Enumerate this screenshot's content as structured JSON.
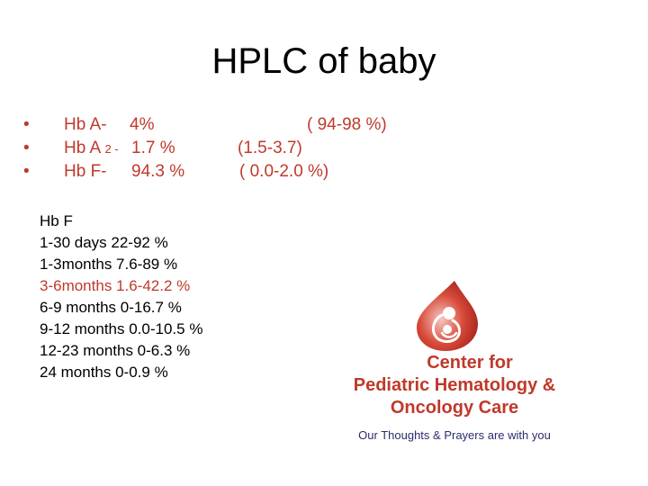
{
  "title": "HPLC of baby",
  "bullets": [
    {
      "label": "Hb A-",
      "sub": "",
      "value": "4%",
      "range": "( 94-98 %)"
    },
    {
      "label": "Hb A",
      "sub": "2 -",
      "value": "1.7 %",
      "range": "(1.5-3.7)"
    },
    {
      "label": "Hb F-",
      "sub": "",
      "value": "94.3 %",
      "range": "( 0.0-2.0 %)"
    }
  ],
  "bullet_symbol": "•",
  "ranges": {
    "heading": "Hb F",
    "lines": [
      "1-30 days 22-92 %",
      "1-3months 7.6-89 %",
      "3-6months 1.6-42.2 %",
      "6-9 months 0-16.7 %",
      "9-12 months 0.0-10.5 %",
      "12-23 months 0-6.3 %",
      "24 months 0-0.9 %"
    ],
    "highlight_color": "#c0392b"
  },
  "logo": {
    "line1": "Center for",
    "line2": "Pediatric Hematology &",
    "line3": "Oncology Care",
    "tagline": "Our Thoughts & Prayers are with you",
    "icon": "blood-drop-mother-child-icon",
    "brand_color": "#c0392b",
    "tagline_color": "#2c2c6e"
  }
}
